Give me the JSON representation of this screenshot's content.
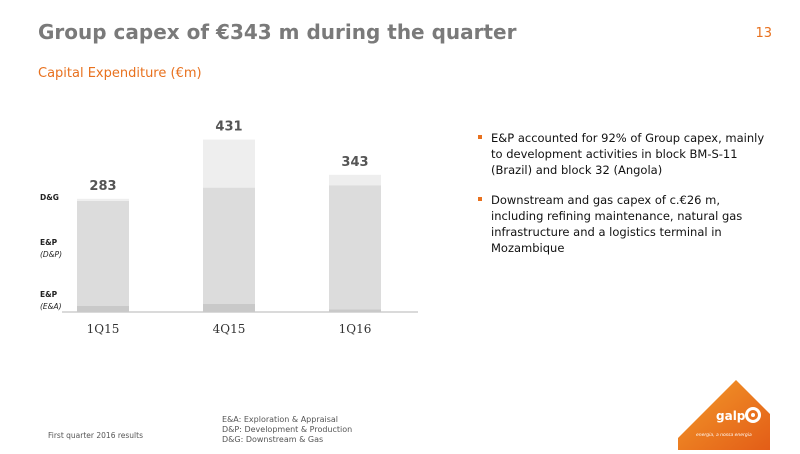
{
  "header": {
    "title": "Group capex of €343 m during the quarter",
    "page_number": "13"
  },
  "chart_data": {
    "type": "bar",
    "title": "Capital Expenditure (€m)",
    "categories": [
      "1Q15",
      "4Q15",
      "1Q16"
    ],
    "totals": [
      283,
      431,
      343
    ],
    "series": [
      {
        "name": "E&P (E&A)",
        "values": [
          15,
          20,
          7
        ]
      },
      {
        "name": "E&P (D&P)",
        "values": [
          263,
          291,
          310
        ]
      },
      {
        "name": "D&G",
        "values": [
          5,
          120,
          26
        ]
      }
    ],
    "legend": [
      {
        "label": "D&G",
        "sub": ""
      },
      {
        "label": "E&P",
        "sub": "(D&P)"
      },
      {
        "label": "E&P",
        "sub": "(E&A)"
      }
    ],
    "colors": [
      "#c9c9c9",
      "#dcdcdc",
      "#eeeeee"
    ],
    "ylim": [
      0,
      450
    ],
    "legend_placement": "left",
    "grid": false
  },
  "bullets": [
    "E&P accounted for 92% of Group capex, mainly to development activities in block BM-S-11 (Brazil) and block 32 (Angola)",
    "Downstream and gas capex of c.€26 m, including refining maintenance, natural gas infrastructure and a logistics terminal in Mozambique"
  ],
  "footer": {
    "left": "First quarter 2016 results",
    "notes": [
      "E&A: Exploration & Appraisal",
      "D&P: Development & Production",
      "D&G: Downstream & Gas"
    ]
  },
  "logo": {
    "name": "galp",
    "tagline": "energia, a nossa energia"
  },
  "accent_color": "#e8711e"
}
